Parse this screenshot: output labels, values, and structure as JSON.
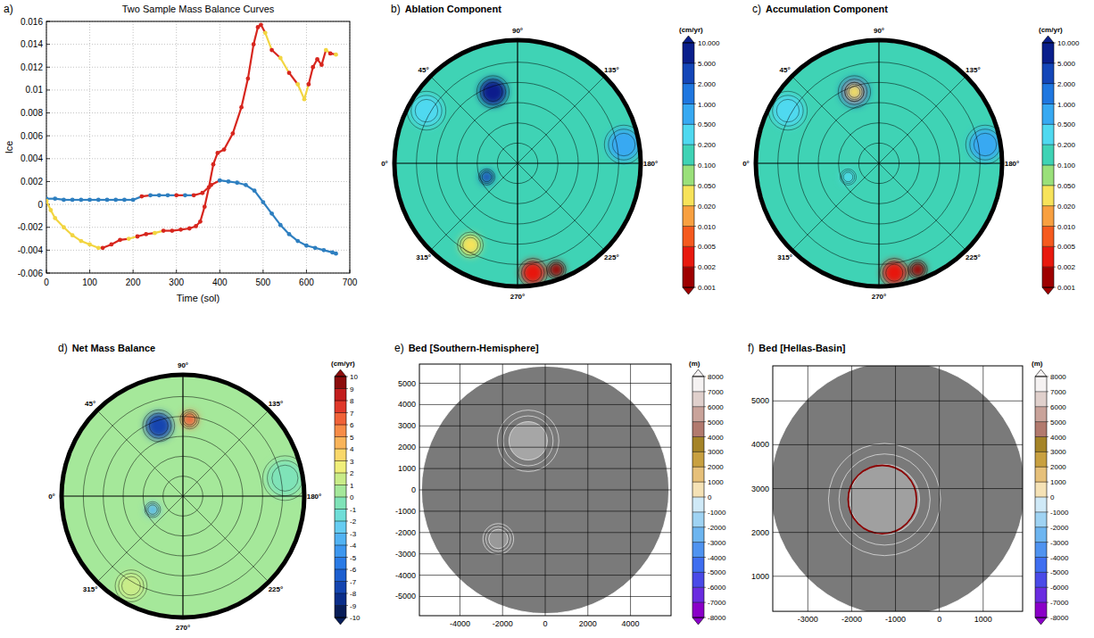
{
  "chart_data": [
    {
      "type": "scatter",
      "panel_label": "a)",
      "title": "Two Sample Mass Balance Curves",
      "x_label": "Time (sol)",
      "y_label": "Ice",
      "xlim": [
        0,
        700
      ],
      "xticks": [
        0,
        100,
        200,
        300,
        400,
        500,
        600,
        700
      ],
      "ylim": [
        -0.006,
        0.016
      ],
      "yticks": [
        -0.006,
        -0.004,
        -0.002,
        0,
        0.002,
        0.004,
        0.006,
        0.008,
        0.01,
        0.012,
        0.014,
        0.016
      ],
      "grid": true,
      "series": [
        {
          "marker": "circle",
          "line_style": "solid",
          "x": [
            0,
            20,
            40,
            60,
            80,
            100,
            120,
            140,
            160,
            180,
            200,
            220,
            240,
            260,
            280,
            300,
            320,
            340,
            360,
            380,
            400,
            420,
            440,
            460,
            480,
            500,
            520,
            540,
            560,
            580,
            600,
            620,
            640,
            660,
            668
          ],
          "values": [
            0.0005,
            0.0005,
            0.0004,
            0.0004,
            0.0004,
            0.0004,
            0.0004,
            0.0004,
            0.0004,
            0.0004,
            0.0004,
            0.0007,
            0.0008,
            0.0008,
            0.0008,
            0.0008,
            0.0008,
            0.0008,
            0.001,
            0.0017,
            0.0021,
            0.002,
            0.0019,
            0.0017,
            0.0012,
            0.0002,
            -0.0008,
            -0.0018,
            -0.0026,
            -0.0032,
            -0.0036,
            -0.0038,
            -0.004,
            -0.0042,
            -0.0043
          ],
          "colors": [
            "#2e7fc0",
            "#2e7fc0",
            "#2e7fc0",
            "#2e7fc0",
            "#2e7fc0",
            "#2e7fc0",
            "#2e7fc0",
            "#2e7fc0",
            "#2e7fc0",
            "#2e7fc0",
            "#2e7fc0",
            "#d7261e",
            "#2e7fc0",
            "#2e7fc0",
            "#2e7fc0",
            "#d7261e",
            "#2e7fc0",
            "#d7261e",
            "#d7261e",
            "#d7261e",
            "#2e7fc0",
            "#2e7fc0",
            "#2e7fc0",
            "#2e7fc0",
            "#2e7fc0",
            "#2e7fc0",
            "#2e7fc0",
            "#2e7fc0",
            "#2e7fc0",
            "#2e7fc0",
            "#2e7fc0",
            "#2e7fc0",
            "#2e7fc0",
            "#2e7fc0",
            "#2e7fc0"
          ]
        },
        {
          "marker": "circle",
          "line_style": "solid",
          "x": [
            0,
            10,
            20,
            40,
            60,
            80,
            100,
            120,
            130,
            150,
            170,
            190,
            210,
            230,
            250,
            270,
            290,
            310,
            330,
            345,
            355,
            365,
            375,
            385,
            395,
            410,
            430,
            450,
            465,
            478,
            488,
            495,
            505,
            520,
            540,
            560,
            580,
            595,
            605,
            615,
            625,
            635,
            645,
            655,
            668
          ],
          "values": [
            0.0003,
            -0.0005,
            -0.0012,
            -0.002,
            -0.0027,
            -0.0032,
            -0.0035,
            -0.0038,
            -0.0038,
            -0.0035,
            -0.0031,
            -0.003,
            -0.0028,
            -0.0026,
            -0.0025,
            -0.0023,
            -0.0023,
            -0.0022,
            -0.0021,
            -0.0019,
            -0.0015,
            -0.0002,
            0.0015,
            0.0035,
            0.0045,
            0.0048,
            0.0062,
            0.0085,
            0.011,
            0.014,
            0.0155,
            0.0157,
            0.015,
            0.0135,
            0.0128,
            0.0115,
            0.0105,
            0.0092,
            0.0105,
            0.012,
            0.0127,
            0.0122,
            0.0135,
            0.0132,
            0.0131
          ],
          "colors": [
            "#f2d541",
            "#f2d541",
            "#f2d541",
            "#f2d541",
            "#f2d541",
            "#f2d541",
            "#f2d541",
            "#f2d541",
            "#d7261e",
            "#d7261e",
            "#d7261e",
            "#f2d541",
            "#d7261e",
            "#d7261e",
            "#f2d541",
            "#d7261e",
            "#d7261e",
            "#d7261e",
            "#d7261e",
            "#d7261e",
            "#d7261e",
            "#d7261e",
            "#d7261e",
            "#d7261e",
            "#d7261e",
            "#d7261e",
            "#d7261e",
            "#d7261e",
            "#d7261e",
            "#d7261e",
            "#d7261e",
            "#d7261e",
            "#f2d541",
            "#d7261e",
            "#f2d541",
            "#d7261e",
            "#f2d541",
            "#f2d541",
            "#d7261e",
            "#d7261e",
            "#d7261e",
            "#d7261e",
            "#f2d541",
            "#d7261e",
            "#f2d541"
          ]
        }
      ]
    },
    {
      "type": "polar_map",
      "panel_label": "b)",
      "title": "Ablation Component",
      "rlim": [
        0,
        90
      ],
      "lon_labels": [
        {
          "value": 90,
          "label": "90°"
        },
        {
          "value": 135,
          "label": "135°"
        },
        {
          "value": 180,
          "label": "180°"
        },
        {
          "value": 225,
          "label": "225°"
        },
        {
          "value": 270,
          "label": "270°"
        },
        {
          "value": 315,
          "label": "315°"
        },
        {
          "value": 0,
          "label": "0°"
        },
        {
          "value": 45,
          "label": "45°"
        }
      ],
      "background_value": 0.12,
      "features": [
        {
          "lon": 71,
          "colat": 56,
          "size": 10,
          "value": 6
        },
        {
          "lon": 336,
          "colat": 25,
          "size": 5,
          "value": 3
        },
        {
          "lon": 262,
          "colat": 82,
          "size": 9,
          "value": 0.003
        },
        {
          "lon": 250,
          "colat": 84,
          "size": 6,
          "value": 0.0015
        },
        {
          "lon": 170,
          "colat": 80,
          "size": 12,
          "value": 0.6
        },
        {
          "lon": 30,
          "colat": 78,
          "size": 12,
          "value": 0.3
        },
        {
          "lon": 300,
          "colat": 70,
          "size": 8,
          "value": 0.03
        }
      ],
      "colorbar": {
        "unit": "(cm/yr)",
        "ticks": [
          0.001,
          0.002,
          0.005,
          {
            "value": 0.01,
            "label": "0.010"
          },
          {
            "value": 0.02,
            "label": "0.020"
          },
          {
            "value": 0.05,
            "label": "0.050"
          },
          {
            "value": 0.1,
            "label": "0.100"
          },
          {
            "value": 0.2,
            "label": "0.200"
          },
          {
            "value": 0.5,
            "label": "0.500"
          },
          {
            "value": 1,
            "label": "1.000"
          },
          {
            "value": 2,
            "label": "2.000"
          },
          {
            "value": 5,
            "label": "5.000"
          },
          {
            "value": 10,
            "label": "10.000"
          }
        ],
        "colors": [
          "#9e0000",
          "#e8190e",
          "#f55a1e",
          "#f8a040",
          "#f7e35a",
          "#9ae07a",
          "#3fd3b5",
          "#4fd9f0",
          "#37a9f2",
          "#1f77e0",
          "#1446b8",
          "#0a1f8c"
        ]
      }
    },
    {
      "type": "polar_map",
      "panel_label": "c)",
      "title": "Accumulation Component",
      "rlim": [
        0,
        90
      ],
      "lon_labels": [
        {
          "value": 90,
          "label": "90°"
        },
        {
          "value": 135,
          "label": "135°"
        },
        {
          "value": 180,
          "label": "180°"
        },
        {
          "value": 225,
          "label": "225°"
        },
        {
          "value": 270,
          "label": "270°"
        },
        {
          "value": 315,
          "label": "315°"
        },
        {
          "value": 0,
          "label": "0°"
        },
        {
          "value": 45,
          "label": "45°"
        }
      ],
      "background_value": 0.12,
      "features": [
        {
          "lon": 71,
          "colat": 56,
          "size": 10,
          "value": 3
        },
        {
          "lon": 71,
          "colat": 56,
          "size": 6,
          "value": 0.03
        },
        {
          "lon": 336,
          "colat": 25,
          "size": 5,
          "value": 0.3
        },
        {
          "lon": 262,
          "colat": 82,
          "size": 9,
          "value": 0.003
        },
        {
          "lon": 250,
          "colat": 84,
          "size": 6,
          "value": 0.0015
        },
        {
          "lon": 170,
          "colat": 80,
          "size": 12,
          "value": 0.7
        },
        {
          "lon": 30,
          "colat": 78,
          "size": 12,
          "value": 0.3
        }
      ],
      "colorbar": {
        "unit": "(cm/yr)",
        "ticks": [
          0.001,
          0.002,
          0.005,
          {
            "value": 0.01,
            "label": "0.010"
          },
          {
            "value": 0.02,
            "label": "0.020"
          },
          {
            "value": 0.05,
            "label": "0.050"
          },
          {
            "value": 0.1,
            "label": "0.100"
          },
          {
            "value": 0.2,
            "label": "0.200"
          },
          {
            "value": 0.5,
            "label": "0.500"
          },
          {
            "value": 1,
            "label": "1.000"
          },
          {
            "value": 2,
            "label": "2.000"
          },
          {
            "value": 5,
            "label": "5.000"
          },
          {
            "value": 10,
            "label": "10.000"
          }
        ],
        "colors": [
          "#9e0000",
          "#e8190e",
          "#f55a1e",
          "#f8a040",
          "#f7e35a",
          "#9ae07a",
          "#3fd3b5",
          "#4fd9f0",
          "#37a9f2",
          "#1f77e0",
          "#1446b8",
          "#0a1f8c"
        ]
      }
    },
    {
      "type": "polar_map",
      "panel_label": "d)",
      "title": "Net Mass Balance",
      "rlim": [
        0,
        90
      ],
      "lon_labels": [
        {
          "value": 90,
          "label": "90°"
        },
        {
          "value": 135,
          "label": "135°"
        },
        {
          "value": 180,
          "label": "180°"
        },
        {
          "value": 225,
          "label": "225°"
        },
        {
          "value": 270,
          "label": "270°"
        },
        {
          "value": 315,
          "label": "315°"
        },
        {
          "value": 0,
          "label": "0°"
        },
        {
          "value": 45,
          "label": "45°"
        }
      ],
      "background_value": 0.5,
      "features": [
        {
          "lon": 71,
          "colat": 56,
          "size": 10,
          "value": -7.5
        },
        {
          "lon": 95,
          "colat": 58,
          "size": 6,
          "value": 6.5
        },
        {
          "lon": 336,
          "colat": 25,
          "size": 5,
          "value": -4
        },
        {
          "lon": 170,
          "colat": 78,
          "size": 14,
          "value": -0.5
        },
        {
          "lon": 300,
          "colat": 78,
          "size": 10,
          "value": 1.5
        }
      ],
      "colorbar": {
        "unit": "(cm/yr)",
        "ticks": [
          -10,
          -9,
          -8,
          -7,
          -6,
          -5,
          -4,
          -3,
          -2,
          -1,
          0,
          1,
          2,
          3,
          4,
          5,
          6,
          7,
          8,
          9,
          10
        ],
        "colors": [
          "#081d58",
          "#0b2e8a",
          "#1445b0",
          "#1d5fd0",
          "#2a7be6",
          "#3d97ef",
          "#52b3f3",
          "#66cdf2",
          "#6fded8",
          "#7fe3b8",
          "#a5e89a",
          "#c9ec88",
          "#f0ef7a",
          "#f9d86a",
          "#f9b45a",
          "#f78c48",
          "#f06238",
          "#e0382a",
          "#c21e1e",
          "#8c0d0d"
        ]
      }
    },
    {
      "type": "map",
      "panel_label": "e)",
      "title": "Bed [Southern-Hemisphere]",
      "color": "#7a7a7a",
      "xlim": [
        -5900,
        5900
      ],
      "xticks": [
        -4000,
        -2000,
        0,
        2000,
        4000
      ],
      "ylim": [
        -5900,
        5900
      ],
      "yticks": [
        -5000,
        -4000,
        -3000,
        -2000,
        -1000,
        0,
        1000,
        2000,
        3000,
        4000,
        5000
      ],
      "grid": true,
      "disk": {
        "x": 0,
        "y": 0,
        "radius": 5800
      },
      "features": [
        {
          "type": "area",
          "x": -800,
          "y": 2300,
          "radius": 900,
          "color": "#a6a6a6"
        },
        {
          "type": "area",
          "x": -2200,
          "y": -2300,
          "radius": 450,
          "color": "#999999"
        }
      ],
      "colorbar": {
        "unit": "(m)",
        "ticks": [
          -8000,
          -7000,
          -6000,
          -5000,
          -4000,
          -3000,
          -2000,
          -1000,
          0,
          1000,
          2000,
          3000,
          4000,
          5000,
          6000,
          7000,
          8000
        ],
        "colors": [
          "#8a00c8",
          "#6a2ce0",
          "#4a4ae8",
          "#3f6ef0",
          "#4f93f0",
          "#6db5f0",
          "#9fd3f3",
          "#cfe9f7",
          "#f5e2b6",
          "#e6c07a",
          "#c8a040",
          "#a58428",
          "#b27a6e",
          "#c9a39a",
          "#e0d0cc",
          "#f5f2f2"
        ]
      }
    },
    {
      "type": "map",
      "panel_label": "f)",
      "title": "Bed [Hellas-Basin]",
      "color": "#7a7a7a",
      "xlim": [
        -3800,
        1900
      ],
      "xticks": [
        -3000,
        -2000,
        -1000,
        0,
        1000
      ],
      "ylim": [
        200,
        5800
      ],
      "yticks": [
        1000,
        2000,
        3000,
        4000,
        5000
      ],
      "grid": true,
      "disk": {
        "x": -950,
        "y": 3000,
        "radius": 2900
      },
      "features": [
        {
          "type": "area",
          "x": -1250,
          "y": 2750,
          "radius": 800,
          "color": "#a0a0a0"
        },
        {
          "type": "contour",
          "x": -1300,
          "y": 2750,
          "radius": 780,
          "color": "#8b0000"
        }
      ],
      "colorbar": {
        "unit": "(m)",
        "ticks": [
          -8000,
          -7000,
          -6000,
          -5000,
          -4000,
          -3000,
          -2000,
          -1000,
          0,
          1000,
          2000,
          3000,
          4000,
          5000,
          6000,
          7000,
          8000
        ],
        "colors": [
          "#8a00c8",
          "#6a2ce0",
          "#4a4ae8",
          "#3f6ef0",
          "#4f93f0",
          "#6db5f0",
          "#9fd3f3",
          "#cfe9f7",
          "#f5e2b6",
          "#e6c07a",
          "#c8a040",
          "#a58428",
          "#b27a6e",
          "#c9a39a",
          "#e0d0cc",
          "#f5f2f2"
        ]
      }
    }
  ]
}
